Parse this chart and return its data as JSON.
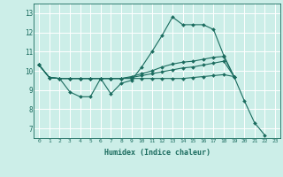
{
  "xlabel": "Humidex (Indice chaleur)",
  "background_color": "#cceee8",
  "grid_color": "#ffffff",
  "line_color": "#1a6b5e",
  "xlim": [
    -0.5,
    23.5
  ],
  "ylim": [
    6.5,
    13.5
  ],
  "yticks": [
    7,
    8,
    9,
    10,
    11,
    12,
    13
  ],
  "lines": [
    {
      "x": [
        0,
        1,
        2,
        3,
        4,
        5,
        6,
        7,
        8,
        9,
        10,
        11,
        12,
        13,
        14,
        15,
        16,
        17,
        18,
        19,
        20,
        21,
        22
      ],
      "y": [
        10.3,
        9.65,
        9.6,
        8.9,
        8.65,
        8.65,
        9.6,
        8.8,
        9.35,
        9.5,
        10.2,
        11.0,
        11.85,
        12.8,
        12.4,
        12.4,
        12.4,
        12.15,
        10.8,
        9.7,
        8.45,
        7.3,
        6.65
      ]
    },
    {
      "x": [
        0,
        1,
        2,
        3,
        4,
        5,
        6,
        7,
        8,
        9,
        10,
        11,
        12,
        13,
        14,
        15,
        16,
        17,
        18,
        19
      ],
      "y": [
        10.3,
        9.65,
        9.6,
        9.6,
        9.6,
        9.6,
        9.6,
        9.6,
        9.6,
        9.7,
        9.85,
        10.0,
        10.2,
        10.35,
        10.45,
        10.5,
        10.6,
        10.7,
        10.75,
        9.7
      ]
    },
    {
      "x": [
        0,
        1,
        2,
        3,
        4,
        5,
        6,
        7,
        8,
        9,
        10,
        11,
        12,
        13,
        14,
        15,
        16,
        17,
        18,
        19
      ],
      "y": [
        10.3,
        9.65,
        9.6,
        9.6,
        9.6,
        9.6,
        9.6,
        9.6,
        9.6,
        9.65,
        9.75,
        9.85,
        9.95,
        10.05,
        10.15,
        10.2,
        10.3,
        10.4,
        10.5,
        9.7
      ]
    },
    {
      "x": [
        0,
        1,
        2,
        3,
        4,
        5,
        6,
        7,
        8,
        9,
        10,
        11,
        12,
        13,
        14,
        15,
        16,
        17,
        18,
        19
      ],
      "y": [
        10.3,
        9.65,
        9.6,
        9.6,
        9.6,
        9.6,
        9.6,
        9.6,
        9.6,
        9.6,
        9.6,
        9.6,
        9.6,
        9.6,
        9.6,
        9.65,
        9.7,
        9.75,
        9.8,
        9.7
      ]
    }
  ]
}
